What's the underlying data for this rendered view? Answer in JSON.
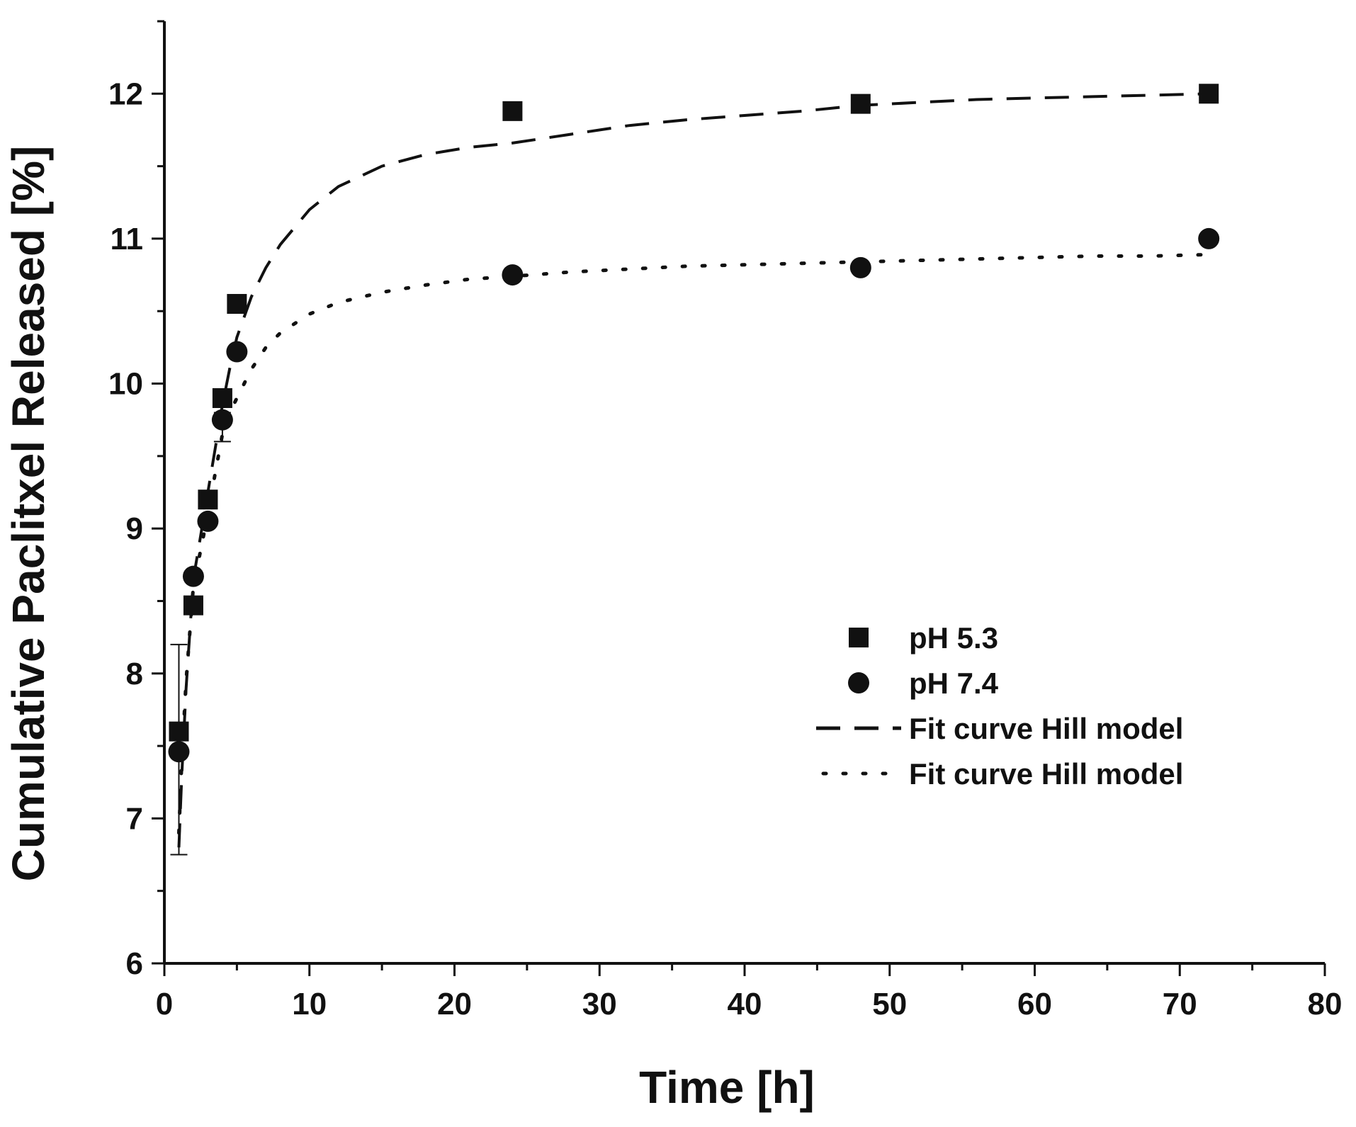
{
  "chart_data": {
    "type": "scatter",
    "title": "",
    "xlabel": "Time [h]",
    "ylabel": "Cumulative Paclitxel Released [%]",
    "xlim": [
      0,
      80
    ],
    "ylim": [
      6,
      12.5
    ],
    "x_ticks": [
      0,
      10,
      20,
      30,
      40,
      50,
      60,
      70,
      80
    ],
    "y_ticks": [
      6,
      7,
      8,
      9,
      10,
      11,
      12
    ],
    "x_minor_step": 5,
    "y_minor_step": 0.5,
    "grid": false,
    "legend_position": "center-right",
    "series": [
      {
        "name": "pH 5.3",
        "marker": "square",
        "x": [
          1,
          2,
          3,
          4,
          5,
          24,
          48,
          72
        ],
        "values": [
          7.6,
          8.47,
          9.2,
          9.9,
          10.55,
          11.88,
          11.93,
          12.0
        ]
      },
      {
        "name": "pH 7.4",
        "marker": "circle",
        "x": [
          1,
          2,
          3,
          4,
          5,
          24,
          48,
          72
        ],
        "values": [
          7.46,
          8.67,
          9.05,
          9.75,
          10.22,
          10.75,
          10.8,
          11.0
        ],
        "error_bars": [
          {
            "x": 1,
            "low": 6.75,
            "high": 8.2
          },
          {
            "x": 4,
            "low": 9.6,
            "high": 9.8
          }
        ]
      }
    ],
    "fits": [
      {
        "name": "Fit curve Hill model",
        "style": "dashed",
        "x": [
          1,
          1.2,
          1.5,
          2,
          2.5,
          3,
          3.5,
          4,
          4.5,
          5,
          6,
          7,
          8,
          10,
          12,
          15,
          18,
          21,
          24,
          28,
          32,
          36,
          40,
          44,
          48,
          52,
          56,
          60,
          64,
          68,
          72
        ],
        "values": [
          6.8,
          7.3,
          7.9,
          8.65,
          8.95,
          9.25,
          9.55,
          9.85,
          10.1,
          10.32,
          10.6,
          10.8,
          10.96,
          11.2,
          11.36,
          11.5,
          11.58,
          11.63,
          11.66,
          11.72,
          11.78,
          11.82,
          11.85,
          11.88,
          11.92,
          11.94,
          11.96,
          11.97,
          11.98,
          11.99,
          12.0
        ]
      },
      {
        "name": "Fit curve Hill model",
        "style": "dotted",
        "x": [
          1,
          1.2,
          1.5,
          2,
          2.5,
          3,
          3.5,
          4,
          4.5,
          5,
          6,
          7,
          8,
          10,
          12,
          15,
          18,
          21,
          24,
          28,
          32,
          36,
          40,
          44,
          48,
          52,
          56,
          60,
          64,
          68,
          72
        ],
        "values": [
          6.9,
          7.4,
          7.95,
          8.6,
          8.85,
          9.1,
          9.38,
          9.65,
          9.8,
          9.9,
          10.1,
          10.25,
          10.35,
          10.48,
          10.56,
          10.63,
          10.68,
          10.72,
          10.74,
          10.77,
          10.79,
          10.81,
          10.82,
          10.83,
          10.84,
          10.85,
          10.86,
          10.87,
          10.88,
          10.88,
          10.89
        ]
      }
    ],
    "legend": [
      {
        "label": "pH 5.3",
        "symbol": "square"
      },
      {
        "label": "pH 7.4",
        "symbol": "circle"
      },
      {
        "label": "Fit curve Hill model",
        "symbol": "dashed-line"
      },
      {
        "label": "Fit curve Hill model",
        "symbol": "dotted-line"
      }
    ]
  }
}
